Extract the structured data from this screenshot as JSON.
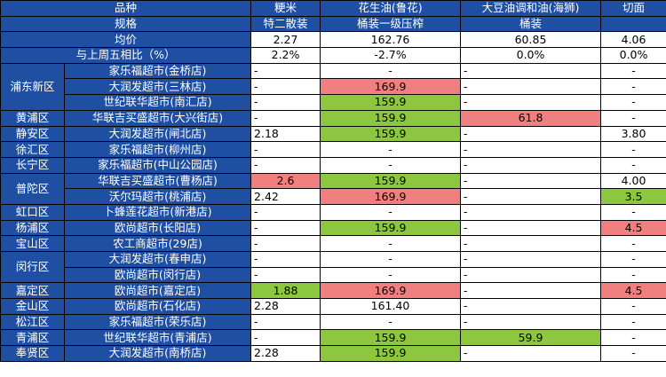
{
  "header": {
    "row1": [
      "品种",
      "粳米",
      "花生油(鲁花)",
      "大豆油调和油(海狮)",
      "切面"
    ],
    "row2": [
      "规格",
      "特二散装",
      "桶装一级压榨",
      "桶装",
      ""
    ],
    "avg_label": "均价",
    "avg": [
      "2.27",
      "162.76",
      "60.85",
      "4.06"
    ],
    "change_label": "与上周五相比（%）",
    "change": [
      "2.2%",
      "-2.7%",
      "0.0%",
      "0.0%"
    ]
  },
  "colors": {
    "header_bg": "#1f4fa3",
    "high": "#f08080",
    "low": "#8dc63f"
  },
  "rows": [
    {
      "district": "浦东新区",
      "span": 3,
      "store": "家乐福超市(金桥店)",
      "cells": [
        {
          "v": "-",
          "c": ""
        },
        {
          "v": "-",
          "c": ""
        },
        {
          "v": "-",
          "c": ""
        },
        {
          "v": "-",
          "c": ""
        }
      ]
    },
    {
      "store": "大润发超市(三林店)",
      "cells": [
        {
          "v": "-",
          "c": ""
        },
        {
          "v": "169.9",
          "c": "red"
        },
        {
          "v": "-",
          "c": ""
        },
        {
          "v": "-",
          "c": ""
        }
      ]
    },
    {
      "store": "世纪联华超市(南汇店)",
      "cells": [
        {
          "v": "-",
          "c": ""
        },
        {
          "v": "159.9",
          "c": "green"
        },
        {
          "v": "-",
          "c": ""
        },
        {
          "v": "-",
          "c": ""
        }
      ]
    },
    {
      "district": "黄浦区",
      "span": 1,
      "store": "华联吉买盛超市(大兴街店)",
      "cells": [
        {
          "v": "-",
          "c": ""
        },
        {
          "v": "159.9",
          "c": "green"
        },
        {
          "v": "61.8",
          "c": "red"
        },
        {
          "v": "-",
          "c": ""
        }
      ]
    },
    {
      "district": "静安区",
      "span": 1,
      "store": "大润发超市(闸北店)",
      "cells": [
        {
          "v": "2.18",
          "c": ""
        },
        {
          "v": "159.9",
          "c": "green"
        },
        {
          "v": "-",
          "c": ""
        },
        {
          "v": "3.80",
          "c": ""
        }
      ]
    },
    {
      "district": "徐汇区",
      "span": 1,
      "store": "家乐福超市(柳州店)",
      "cells": [
        {
          "v": "-",
          "c": ""
        },
        {
          "v": "-",
          "c": ""
        },
        {
          "v": "-",
          "c": ""
        },
        {
          "v": "-",
          "c": ""
        }
      ]
    },
    {
      "district": "长宁区",
      "span": 1,
      "store": "家乐福超市(中山公园店)",
      "cells": [
        {
          "v": "-",
          "c": ""
        },
        {
          "v": "-",
          "c": ""
        },
        {
          "v": "-",
          "c": ""
        },
        {
          "v": "-",
          "c": ""
        }
      ]
    },
    {
      "district": "普陀区",
      "span": 2,
      "store": "华联吉买盛超市(曹杨店)",
      "cells": [
        {
          "v": "2.6",
          "c": "red"
        },
        {
          "v": "159.9",
          "c": "green"
        },
        {
          "v": "-",
          "c": ""
        },
        {
          "v": "4.00",
          "c": ""
        }
      ]
    },
    {
      "store": "沃尔玛超市(桃浦店)",
      "cells": [
        {
          "v": "2.42",
          "c": ""
        },
        {
          "v": "169.9",
          "c": "red"
        },
        {
          "v": "-",
          "c": ""
        },
        {
          "v": "3.5",
          "c": "green"
        }
      ]
    },
    {
      "district": "虹口区",
      "span": 1,
      "store": "卜蜂莲花超市(新港店)",
      "cells": [
        {
          "v": "-",
          "c": ""
        },
        {
          "v": "-",
          "c": ""
        },
        {
          "v": "-",
          "c": ""
        },
        {
          "v": "-",
          "c": ""
        }
      ]
    },
    {
      "district": "杨浦区",
      "span": 1,
      "store": "欧尚超市(长阳店)",
      "cells": [
        {
          "v": "-",
          "c": ""
        },
        {
          "v": "159.9",
          "c": "green"
        },
        {
          "v": "-",
          "c": ""
        },
        {
          "v": "4.5",
          "c": "red"
        }
      ]
    },
    {
      "district": "宝山区",
      "span": 1,
      "store": "农工商超市(29店)",
      "cells": [
        {
          "v": "-",
          "c": ""
        },
        {
          "v": "-",
          "c": ""
        },
        {
          "v": "-",
          "c": ""
        },
        {
          "v": "-",
          "c": ""
        }
      ]
    },
    {
      "district": "闵行区",
      "span": 2,
      "store": "大润发超市(春申店)",
      "cells": [
        {
          "v": "-",
          "c": ""
        },
        {
          "v": "-",
          "c": ""
        },
        {
          "v": "-",
          "c": ""
        },
        {
          "v": "-",
          "c": ""
        }
      ]
    },
    {
      "store": "欧尚超市(闵行店)",
      "cells": [
        {
          "v": "-",
          "c": ""
        },
        {
          "v": "-",
          "c": ""
        },
        {
          "v": "-",
          "c": ""
        },
        {
          "v": "-",
          "c": ""
        }
      ]
    },
    {
      "district": "嘉定区",
      "span": 1,
      "store": "欧尚超市(嘉定店)",
      "cells": [
        {
          "v": "1.88",
          "c": "green"
        },
        {
          "v": "169.9",
          "c": "red"
        },
        {
          "v": "-",
          "c": ""
        },
        {
          "v": "4.5",
          "c": "red"
        }
      ]
    },
    {
      "district": "金山区",
      "span": 1,
      "store": "欧尚超市(石化店)",
      "cells": [
        {
          "v": "2.28",
          "c": ""
        },
        {
          "v": "161.40",
          "c": ""
        },
        {
          "v": "-",
          "c": ""
        },
        {
          "v": "-",
          "c": ""
        }
      ]
    },
    {
      "district": "松江区",
      "span": 1,
      "store": "家乐福超市(荣乐店)",
      "cells": [
        {
          "v": "-",
          "c": ""
        },
        {
          "v": "-",
          "c": ""
        },
        {
          "v": "-",
          "c": ""
        },
        {
          "v": "-",
          "c": ""
        }
      ]
    },
    {
      "district": "青浦区",
      "span": 1,
      "store": "世纪联华超市(青浦店)",
      "cells": [
        {
          "v": "-",
          "c": ""
        },
        {
          "v": "159.9",
          "c": "green"
        },
        {
          "v": "59.9",
          "c": "green"
        },
        {
          "v": "-",
          "c": ""
        }
      ]
    },
    {
      "district": "奉贤区",
      "span": 1,
      "store": "大润发超市(南桥店)",
      "cells": [
        {
          "v": "2.28",
          "c": ""
        },
        {
          "v": "159.9",
          "c": "green"
        },
        {
          "v": "-",
          "c": ""
        },
        {
          "v": "-",
          "c": ""
        }
      ]
    }
  ]
}
